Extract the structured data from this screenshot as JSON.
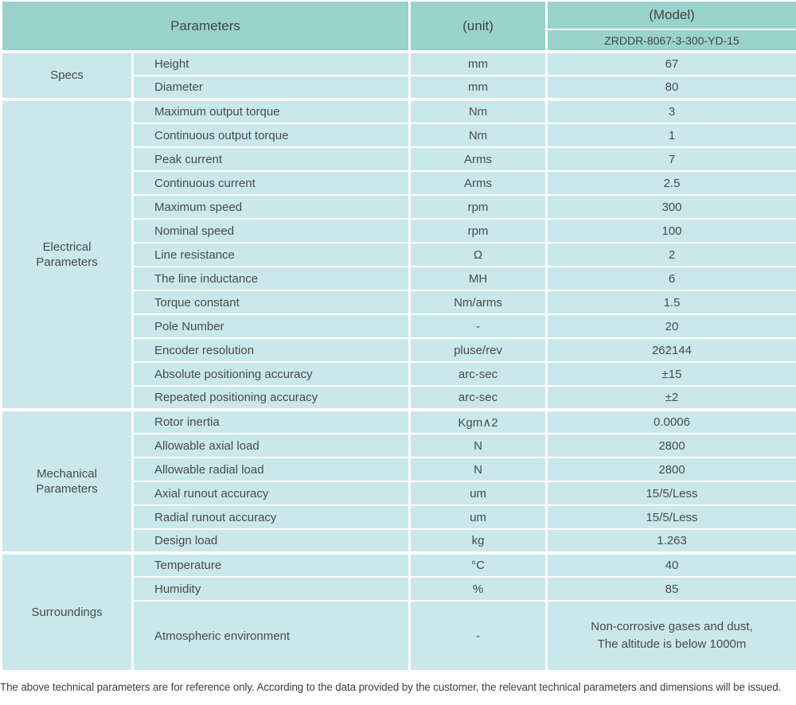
{
  "header": {
    "parameters_label": "Parameters",
    "unit_label": "(unit)",
    "model_label": "(Model)",
    "model_value": "ZRDDR-8067-3-300-YD-15"
  },
  "sections": [
    {
      "name": "Specs",
      "rows": [
        {
          "name": "Height",
          "unit": "mm",
          "value": "67"
        },
        {
          "name": "Diameter",
          "unit": "mm",
          "value": "80"
        }
      ]
    },
    {
      "name": "Electrical\nParameters",
      "rows": [
        {
          "name": "Maximum output torque",
          "unit": "Nm",
          "value": "3"
        },
        {
          "name": "Continuous output torque",
          "unit": "Nm",
          "value": "1"
        },
        {
          "name": "Peak current",
          "unit": "Arms",
          "value": "7"
        },
        {
          "name": "Continuous current",
          "unit": "Arms",
          "value": "2.5"
        },
        {
          "name": "Maximum speed",
          "unit": "rpm",
          "value": "300"
        },
        {
          "name": "Nominal speed",
          "unit": "rpm",
          "value": "100"
        },
        {
          "name": "Line resistance",
          "unit": "Ω",
          "value": "2"
        },
        {
          "name": "The line inductance",
          "unit": "MH",
          "value": "6"
        },
        {
          "name": "Torque constant",
          "unit": "Nm/arms",
          "value": "1.5"
        },
        {
          "name": "Pole Number",
          "unit": "-",
          "value": "20"
        },
        {
          "name": "Encoder resolution",
          "unit": "pluse/rev",
          "value": "262144"
        },
        {
          "name": "Absolute positioning accuracy",
          "unit": "arc-sec",
          "value": "±15"
        },
        {
          "name": "Repeated positioning accuracy",
          "unit": "arc-sec",
          "value": "±2"
        }
      ]
    },
    {
      "name": "Mechanical\nParameters",
      "rows": [
        {
          "name": "Rotor inertia",
          "unit": "Kgm∧2",
          "value": "0.0006"
        },
        {
          "name": "Allowable axial load",
          "unit": "N",
          "value": "2800"
        },
        {
          "name": "Allowable radial load",
          "unit": "N",
          "value": "2800"
        },
        {
          "name": "Axial runout accuracy",
          "unit": "um",
          "value": "15/5/Less"
        },
        {
          "name": "Radial runout accuracy",
          "unit": "um",
          "value": "15/5/Less"
        },
        {
          "name": "Design load",
          "unit": "kg",
          "value": "1.263"
        }
      ]
    },
    {
      "name": "Surroundings",
      "rows": [
        {
          "name": "Temperature",
          "unit": "°C",
          "value": "40"
        },
        {
          "name": "Humidity",
          "unit": "%",
          "value": "85"
        },
        {
          "name": "Atmospheric environment",
          "unit": "-",
          "value": "Non-corrosive gases and dust,\nThe altitude is below 1000m"
        }
      ]
    }
  ],
  "footer_note": "The above technical parameters are for reference only. According to the data provided by the customer, the relevant technical parameters and dimensions will be issued.",
  "colors": {
    "header_bg": "#99d3cb",
    "row_bg": "#cae8ec",
    "text": "#4a4a4a"
  }
}
